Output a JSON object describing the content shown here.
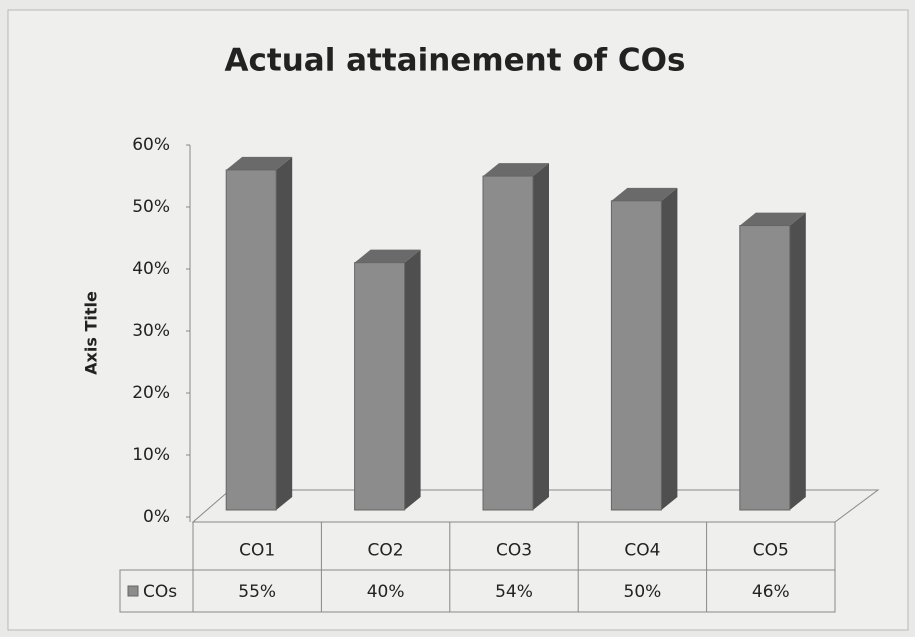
{
  "chart_data": {
    "type": "bar3d",
    "title": "Actual attainement of COs",
    "y_axis_label": "Axis Title",
    "categories": [
      "CO1",
      "CO2",
      "CO3",
      "CO4",
      "CO5"
    ],
    "series": [
      {
        "name": "COs",
        "color": "#8c8c8c",
        "values": [
          55,
          40,
          54,
          50,
          46
        ],
        "value_labels": [
          "55%",
          "40%",
          "54%",
          "50%",
          "46%"
        ]
      }
    ],
    "ylim": [
      0,
      60
    ],
    "yticks": [
      {
        "value": 0,
        "label": "0%"
      },
      {
        "value": 10,
        "label": "10%"
      },
      {
        "value": 20,
        "label": "20%"
      },
      {
        "value": 30,
        "label": "30%"
      },
      {
        "value": 40,
        "label": "40%"
      },
      {
        "value": 50,
        "label": "50%"
      },
      {
        "value": 60,
        "label": "60%"
      }
    ],
    "grid": false,
    "legend": "table"
  }
}
